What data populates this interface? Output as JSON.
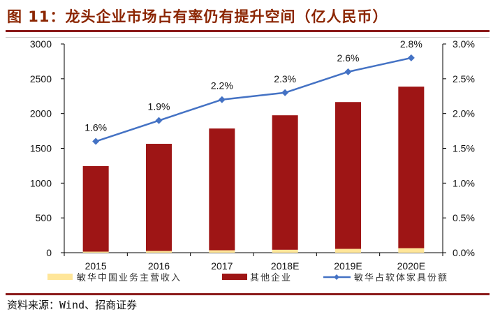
{
  "title": "图 11：龙头企业市场占有率仍有提升空间（亿人民币）",
  "source": "资料来源：Wind、招商证券",
  "chart_data": {
    "type": "bar",
    "stacked": true,
    "categories": [
      "2015",
      "2016",
      "2017",
      "2018E",
      "2019E",
      "2020E"
    ],
    "series": [
      {
        "name": "敏华中国业务主营收入",
        "type": "bar",
        "axis": "left",
        "color": "#FFE699",
        "values": [
          15,
          25,
          35,
          42,
          55,
          65
        ]
      },
      {
        "name": "其他企业",
        "type": "bar",
        "axis": "left",
        "color": "#9E1515",
        "values": [
          1230,
          1540,
          1750,
          1933,
          2110,
          2322
        ]
      },
      {
        "name": "敏华占软体家具份额",
        "type": "line",
        "axis": "right",
        "color": "#4472C4",
        "values": [
          1.6,
          1.9,
          2.2,
          2.3,
          2.6,
          2.8
        ],
        "labels": [
          "1.6%",
          "1.9%",
          "2.2%",
          "2.3%",
          "2.6%",
          "2.8%"
        ]
      }
    ],
    "left_axis": {
      "range": [
        0,
        3000
      ],
      "ticks": [
        "0",
        "500",
        "1000",
        "1500",
        "2000",
        "2500",
        "3000"
      ]
    },
    "right_axis": {
      "range": [
        0,
        3.0
      ],
      "ticks": [
        "0.0%",
        "0.5%",
        "1.0%",
        "1.5%",
        "2.0%",
        "2.5%",
        "3.0%"
      ]
    },
    "grid": false,
    "legend": "bottom"
  }
}
